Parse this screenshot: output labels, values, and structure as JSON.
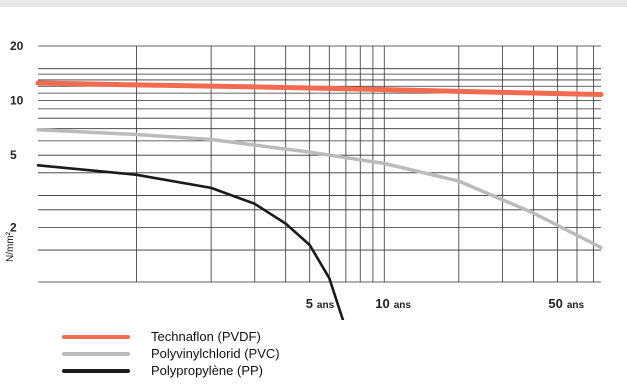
{
  "chart_data": {
    "type": "line",
    "title": "",
    "ylabel": "N/mm²",
    "xlabel": "",
    "y_scale": "log",
    "x_scale": "log",
    "y_ticks": [
      {
        "value": 20,
        "label": "20"
      },
      {
        "value": 10,
        "label": "10"
      },
      {
        "value": 5,
        "label": "5"
      },
      {
        "value": 2,
        "label": "2"
      }
    ],
    "x_ticks": [
      {
        "value": 5,
        "num": "5",
        "unit": "ans"
      },
      {
        "value": 10,
        "num": "10",
        "unit": "ans"
      },
      {
        "value": 50,
        "num": "50",
        "unit": "ans"
      }
    ],
    "grid": true,
    "legend_position": "bottom-left",
    "series": [
      {
        "name": "Technaflon (PVDF)",
        "color": "#f26a4f",
        "points": [
          [
            0.4,
            12.5
          ],
          [
            1,
            12.2
          ],
          [
            3,
            11.9
          ],
          [
            10,
            11.5
          ],
          [
            30,
            11.1
          ],
          [
            75,
            10.8
          ]
        ]
      },
      {
        "name": "Polyvinylchlorid (PVC)",
        "color": "#bbbbbb",
        "points": [
          [
            0.4,
            6.9
          ],
          [
            1,
            6.5
          ],
          [
            2,
            6.1
          ],
          [
            5,
            5.2
          ],
          [
            10,
            4.5
          ],
          [
            20,
            3.6
          ],
          [
            40,
            2.4
          ],
          [
            75,
            1.55
          ]
        ]
      },
      {
        "name": "Polypropylène (PP)",
        "color": "#1a1a1a",
        "points": [
          [
            0.4,
            4.4
          ],
          [
            1,
            3.9
          ],
          [
            2,
            3.3
          ],
          [
            3,
            2.7
          ],
          [
            4,
            2.1
          ],
          [
            5,
            1.6
          ],
          [
            6,
            1.05
          ],
          [
            7,
            0.55
          ]
        ]
      }
    ]
  }
}
